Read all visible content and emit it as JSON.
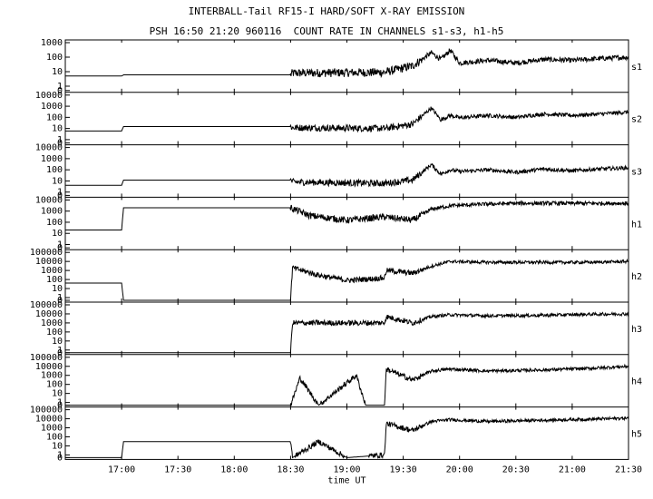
{
  "title": "INTERBALL-Tail RF15-I HARD/SOFT X-RAY EMISSION",
  "subtitle": "PSH 16:50 21:20 960116  COUNT RATE IN CHANNELS s1-s3, h1-h5",
  "chart_data": {
    "type": "line",
    "title": "INTERBALL-Tail RF15-I HARD/SOFT X-RAY EMISSION",
    "subtitle": "PSH 16:50 21:20 960116  COUNT RATE IN CHANNELS s1-s3, h1-h5",
    "xlabel": "time UT",
    "x_ticks": [
      "17:00",
      "17:30",
      "18:00",
      "18:30",
      "19:00",
      "19:30",
      "20:00",
      "20:30",
      "21:00",
      "21:30"
    ],
    "x_range_minutes": [
      990,
      1290
    ],
    "y_scale": "log",
    "panels": [
      {
        "name": "s1",
        "yticks": [
          "1000",
          "100",
          "10",
          "1",
          "0"
        ],
        "ylim": [
          0.5,
          1000
        ]
      },
      {
        "name": "s2",
        "yticks": [
          "10000",
          "1000",
          "100",
          "10",
          "1",
          "0"
        ],
        "ylim": [
          0.5,
          10000
        ]
      },
      {
        "name": "s3",
        "yticks": [
          "10000",
          "1000",
          "100",
          "10",
          "1",
          "0"
        ],
        "ylim": [
          0.5,
          10000
        ]
      },
      {
        "name": "h1",
        "yticks": [
          "10000",
          "1000",
          "100",
          "10",
          "1",
          "0"
        ],
        "ylim": [
          0.5,
          10000
        ]
      },
      {
        "name": "h2",
        "yticks": [
          "100000",
          "10000",
          "1000",
          "100",
          "10",
          "1",
          "0"
        ],
        "ylim": [
          0.5,
          100000
        ]
      },
      {
        "name": "h3",
        "yticks": [
          "100000",
          "10000",
          "1000",
          "100",
          "10",
          "1",
          "0"
        ],
        "ylim": [
          0.5,
          100000
        ]
      },
      {
        "name": "h4",
        "yticks": [
          "100000",
          "10000",
          "1000",
          "100",
          "10",
          "1",
          "0"
        ],
        "ylim": [
          0.5,
          100000
        ]
      },
      {
        "name": "h5",
        "yticks": [
          "100000",
          "10000",
          "1000",
          "100",
          "10",
          "1",
          "0"
        ],
        "ylim": [
          0.5,
          100000
        ]
      }
    ],
    "series": [
      {
        "name": "s1",
        "x": [
          990,
          1020,
          1021,
          1110,
          1111,
          1160,
          1175,
          1185,
          1190,
          1195,
          1200,
          1215,
          1230,
          1245,
          1260,
          1275,
          1290
        ],
        "y": [
          5,
          5,
          6,
          6,
          8,
          9,
          25,
          200,
          70,
          300,
          40,
          60,
          40,
          70,
          60,
          80,
          100
        ]
      },
      {
        "name": "s2",
        "x": [
          990,
          1020,
          1021,
          1110,
          1111,
          1160,
          1175,
          1185,
          1190,
          1195,
          1200,
          1215,
          1230,
          1245,
          1260,
          1275,
          1290
        ],
        "y": [
          6,
          6,
          15,
          15,
          12,
          10,
          25,
          700,
          60,
          150,
          90,
          150,
          100,
          200,
          150,
          200,
          300
        ]
      },
      {
        "name": "s3",
        "x": [
          990,
          1020,
          1021,
          1110,
          1111,
          1160,
          1175,
          1185,
          1190,
          1195,
          1200,
          1215,
          1230,
          1245,
          1260,
          1275,
          1290
        ],
        "y": [
          4,
          4,
          12,
          12,
          8,
          6,
          12,
          300,
          40,
          100,
          70,
          100,
          60,
          120,
          80,
          120,
          150
        ]
      },
      {
        "name": "h1",
        "x": [
          990,
          1020,
          1021,
          1110,
          1120,
          1140,
          1160,
          1175,
          1185,
          1195,
          1210,
          1230,
          1260,
          1290
        ],
        "y": [
          20,
          20,
          2000,
          2000,
          400,
          150,
          300,
          150,
          1500,
          3000,
          4000,
          5000,
          5000,
          5000
        ]
      },
      {
        "name": "h2",
        "x": [
          990,
          1020,
          1021,
          1110,
          1111,
          1125,
          1140,
          1160,
          1161,
          1175,
          1185,
          1195,
          1215,
          1245,
          1270,
          1290
        ],
        "y": [
          40,
          40,
          0.5,
          0.5,
          2000,
          300,
          80,
          150,
          1000,
          500,
          3000,
          10000,
          8000,
          8000,
          8000,
          10000
        ]
      },
      {
        "name": "h3",
        "x": [
          990,
          1110,
          1111,
          1160,
          1161,
          1175,
          1185,
          1195,
          1215,
          1245,
          1270,
          1290
        ],
        "y": [
          0.5,
          0.5,
          1000,
          1000,
          5000,
          1000,
          5000,
          8000,
          6000,
          7000,
          9000,
          10000
        ]
      },
      {
        "name": "h4",
        "x": [
          990,
          1110,
          1115,
          1125,
          1145,
          1150,
          1160,
          1161,
          1175,
          1185,
          1195,
          1215,
          1245,
          1270,
          1290
        ],
        "y": [
          0.5,
          0.5,
          500,
          0.5,
          1000,
          0.5,
          0.5,
          5000,
          300,
          3000,
          5000,
          3000,
          4000,
          6000,
          10000
        ]
      },
      {
        "name": "h5",
        "x": [
          990,
          1020,
          1021,
          1110,
          1111,
          1125,
          1140,
          1160,
          1161,
          1175,
          1185,
          1195,
          1215,
          1245,
          1270,
          1290
        ],
        "y": [
          0.5,
          0.5,
          30,
          30,
          0.5,
          30,
          0.5,
          1,
          3000,
          500,
          5000,
          8000,
          5000,
          7000,
          9000,
          12000
        ]
      }
    ]
  }
}
